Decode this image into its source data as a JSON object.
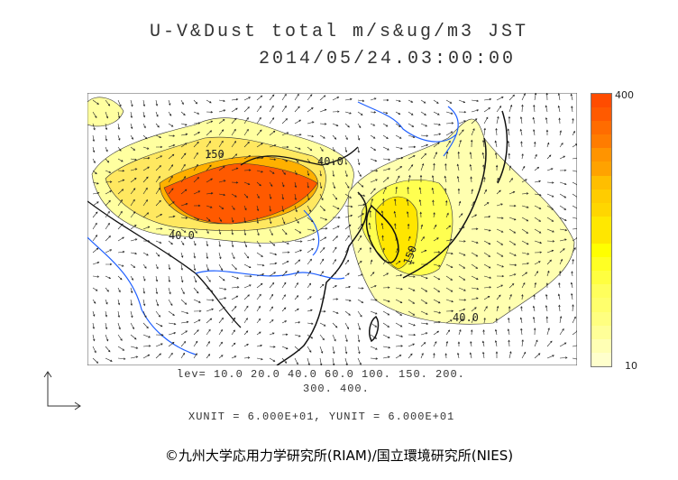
{
  "title": {
    "line1": "U-V&Dust total m/s&ug/m3 JST",
    "line2": "2014/05/24.03:00:00"
  },
  "colorbar": {
    "max_label": "400",
    "min_label": "10",
    "colors": [
      "#ff4c00",
      "#ff5a00",
      "#ff6c00",
      "#ff7c00",
      "#ff9400",
      "#ffa200",
      "#ffbe00",
      "#ffcc00",
      "#ffd600",
      "#ffe800",
      "#ffe600",
      "#ffff00",
      "#ffff24",
      "#ffff40",
      "#ffff5c",
      "#ffff6c",
      "#ffff80",
      "#ffff98",
      "#ffffb4",
      "#ffffcc"
    ]
  },
  "contour_labels": [
    "150",
    "40.0",
    "40.0",
    "150",
    "40.0"
  ],
  "levels": {
    "line1": "lev= 10.0 20.0 40.0 60.0 100. 150. 200.",
    "line2": "300. 400."
  },
  "units": "XUNIT = 6.000E+01, YUNIT = 6.000E+01",
  "credit": "©九州大学応用力学研究所(RIAM)/国立環境研究所(NIES)"
}
